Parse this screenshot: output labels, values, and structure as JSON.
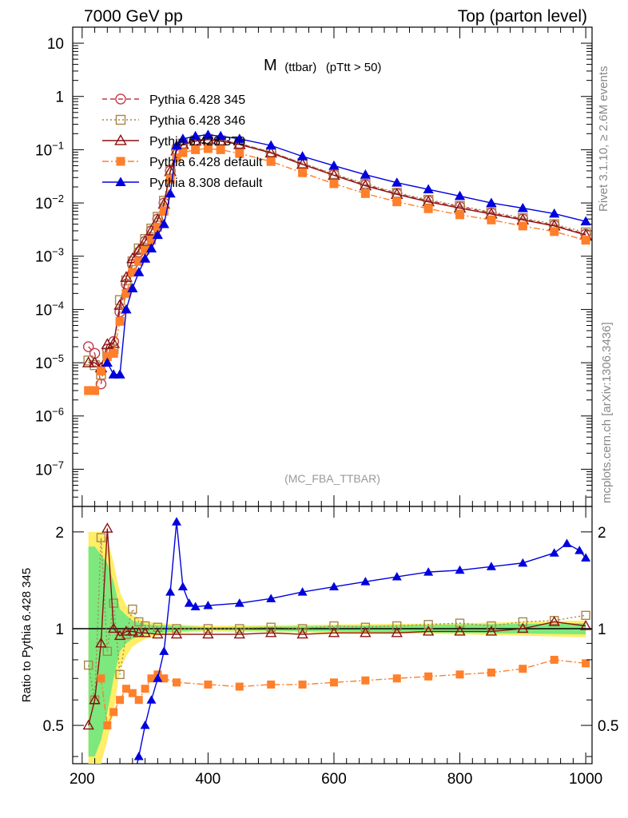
{
  "header": {
    "left": "7000 GeV pp",
    "right": "Top (parton level)"
  },
  "side_labels": {
    "rivet": "Rivet 3.1.10, ≥ 2.6M events",
    "mcplots": "mcplots.cern.ch [arXiv:1306.3436]"
  },
  "colors": {
    "p345": "#c0394b",
    "p346": "#a8864a",
    "p370": "#8b1010",
    "p6def": "#ff7f2a",
    "p8def": "#0000dd",
    "band_yellow": "#ffee66",
    "band_green": "#7de87d"
  },
  "chart_data": [
    {
      "type": "line",
      "title": "M",
      "title_sub": "(ttbar)",
      "title_extra": "(pTtt > 50)",
      "watermark": "(MC_FBA_TTBAR)",
      "xlim": [
        185,
        1010
      ],
      "ylim": [
        2e-08,
        20
      ],
      "yscale": "log",
      "yticks": [
        {
          "v": 1e-07,
          "m": "10",
          "e": "−7"
        },
        {
          "v": 1e-06,
          "m": "10",
          "e": "−6"
        },
        {
          "v": 1e-05,
          "m": "10",
          "e": "−5"
        },
        {
          "v": 0.0001,
          "m": "10",
          "e": "−4"
        },
        {
          "v": 0.001,
          "m": "10",
          "e": "−3"
        },
        {
          "v": 0.01,
          "m": "10",
          "e": "−2"
        },
        {
          "v": 0.1,
          "m": "10",
          "e": "−1"
        },
        {
          "v": 1,
          "m": "1",
          "e": ""
        },
        {
          "v": 10,
          "m": "10",
          "e": ""
        }
      ],
      "legend_placement": "top-left",
      "series": [
        {
          "name": "Pythia 6.428 345",
          "marker": "circle-open",
          "dash": "6,4",
          "x": [
            210,
            220,
            230,
            240,
            250,
            260,
            270,
            280,
            290,
            300,
            310,
            320,
            330,
            340,
            350,
            360,
            380,
            400,
            420,
            450,
            500,
            550,
            600,
            650,
            700,
            750,
            800,
            850,
            900,
            950,
            1000
          ],
          "y": [
            2e-05,
            1.5e-05,
            4e-06,
            1.8e-05,
            2.5e-05,
            9e-05,
            0.0003,
            0.0007,
            0.0012,
            0.0019,
            0.003,
            0.005,
            0.01,
            0.04,
            0.1,
            0.13,
            0.15,
            0.16,
            0.15,
            0.13,
            0.09,
            0.055,
            0.034,
            0.022,
            0.015,
            0.011,
            0.0085,
            0.0065,
            0.005,
            0.0038,
            0.0026
          ]
        },
        {
          "name": "Pythia 6.428 346",
          "marker": "square-open",
          "dash": "2,3",
          "x": [
            210,
            220,
            230,
            240,
            250,
            260,
            270,
            280,
            290,
            300,
            310,
            320,
            330,
            340,
            350,
            360,
            380,
            400,
            420,
            450,
            500,
            550,
            600,
            650,
            700,
            750,
            800,
            850,
            900,
            950,
            1000
          ],
          "y": [
            1.1e-05,
            9e-06,
            6e-06,
            1.5e-05,
            1.8e-05,
            0.00015,
            0.00035,
            0.0008,
            0.0014,
            0.0021,
            0.0033,
            0.0055,
            0.011,
            0.042,
            0.1,
            0.13,
            0.15,
            0.16,
            0.15,
            0.13,
            0.09,
            0.056,
            0.035,
            0.023,
            0.0155,
            0.0115,
            0.0088,
            0.0068,
            0.0052,
            0.004,
            0.0028
          ]
        },
        {
          "name": "Pythia 6.428 370",
          "marker": "triangle-open",
          "dash": "",
          "x": [
            210,
            220,
            230,
            240,
            250,
            260,
            270,
            280,
            290,
            300,
            310,
            320,
            330,
            340,
            350,
            360,
            380,
            400,
            420,
            450,
            500,
            550,
            600,
            650,
            700,
            750,
            800,
            850,
            900,
            950,
            1000
          ],
          "y": [
            1e-05,
            1e-05,
            8e-06,
            2.2e-05,
            2.3e-05,
            0.00012,
            0.0004,
            0.0009,
            0.0013,
            0.0019,
            0.003,
            0.0048,
            0.0095,
            0.039,
            0.095,
            0.125,
            0.145,
            0.155,
            0.145,
            0.125,
            0.087,
            0.053,
            0.033,
            0.021,
            0.0145,
            0.0105,
            0.008,
            0.0062,
            0.0048,
            0.0037,
            0.0025
          ]
        },
        {
          "name": "Pythia 6.428 default",
          "marker": "square-filled",
          "dash": "8,3,2,3",
          "x": [
            210,
            220,
            230,
            240,
            250,
            260,
            270,
            280,
            290,
            300,
            310,
            320,
            330,
            340,
            350,
            360,
            380,
            400,
            420,
            450,
            500,
            550,
            600,
            650,
            700,
            750,
            800,
            850,
            900,
            950,
            1000
          ],
          "y": [
            3e-06,
            3e-06,
            7e-06,
            1.3e-05,
            1.5e-05,
            6e-05,
            0.0002,
            0.0005,
            0.0008,
            0.0013,
            0.002,
            0.0035,
            0.007,
            0.028,
            0.07,
            0.088,
            0.1,
            0.105,
            0.1,
            0.085,
            0.06,
            0.037,
            0.023,
            0.015,
            0.0105,
            0.0078,
            0.006,
            0.0048,
            0.0037,
            0.0029,
            0.002
          ]
        },
        {
          "name": "Pythia 8.308 default",
          "marker": "triangle-filled",
          "dash": "",
          "x": [
            240,
            250,
            260,
            270,
            280,
            290,
            300,
            310,
            320,
            330,
            340,
            350,
            360,
            380,
            400,
            420,
            450,
            500,
            550,
            600,
            650,
            700,
            750,
            800,
            850,
            900,
            950,
            1000
          ],
          "y": [
            1e-05,
            6e-06,
            6e-06,
            0.0001,
            0.00025,
            0.0005,
            0.0009,
            0.0014,
            0.0025,
            0.004,
            0.015,
            0.12,
            0.16,
            0.18,
            0.19,
            0.18,
            0.16,
            0.12,
            0.075,
            0.05,
            0.034,
            0.024,
            0.018,
            0.0135,
            0.01,
            0.008,
            0.0063,
            0.0045
          ]
        }
      ]
    },
    {
      "type": "line",
      "ylabel": "Ratio to Pythia 6.428 345",
      "xlim": [
        185,
        1010
      ],
      "ylim": [
        0.38,
        2.4
      ],
      "yscale": "log",
      "reference_line": 1,
      "xticks": [
        200,
        400,
        600,
        800,
        1000
      ],
      "yticks": [
        0.5,
        1,
        2
      ],
      "band": {
        "x": [
          210,
          220,
          230,
          240,
          250,
          260,
          270,
          280,
          300,
          350,
          400,
          500,
          600,
          700,
          800,
          900,
          1000
        ],
        "yellow_lo": [
          0.35,
          0.35,
          0.38,
          0.45,
          0.55,
          0.75,
          0.82,
          0.88,
          0.93,
          0.97,
          0.98,
          0.975,
          0.97,
          0.965,
          0.96,
          0.95,
          0.94
        ],
        "yellow_hi": [
          2.0,
          2.0,
          2.0,
          1.9,
          1.6,
          1.3,
          1.18,
          1.1,
          1.05,
          1.03,
          1.02,
          1.025,
          1.03,
          1.035,
          1.04,
          1.05,
          1.06
        ],
        "green_lo": [
          0.4,
          0.4,
          0.45,
          0.55,
          0.7,
          0.85,
          0.9,
          0.93,
          0.96,
          0.98,
          0.99,
          0.985,
          0.98,
          0.975,
          0.97,
          0.965,
          0.96
        ],
        "green_hi": [
          1.8,
          1.8,
          1.7,
          1.6,
          1.4,
          1.15,
          1.1,
          1.06,
          1.03,
          1.02,
          1.01,
          1.015,
          1.02,
          1.025,
          1.03,
          1.035,
          1.04
        ]
      },
      "series": [
        {
          "name": "Pythia 6.428 346",
          "x": [
            210,
            220,
            230,
            240,
            250,
            260,
            270,
            280,
            290,
            300,
            320,
            350,
            400,
            450,
            500,
            550,
            600,
            650,
            700,
            750,
            800,
            850,
            900,
            950,
            1000
          ],
          "y": [
            0.77,
            0.6,
            1.92,
            0.85,
            1.2,
            0.72,
            0.96,
            1.15,
            1.05,
            1.02,
            1.01,
            1.0,
            1.0,
            1.0,
            1.01,
            1.0,
            1.02,
            1.01,
            1.02,
            1.03,
            1.04,
            1.02,
            1.05,
            1.06,
            1.1
          ]
        },
        {
          "name": "Pythia 6.428 370",
          "x": [
            210,
            220,
            230,
            240,
            250,
            260,
            270,
            280,
            290,
            300,
            320,
            350,
            400,
            450,
            500,
            550,
            600,
            650,
            700,
            750,
            800,
            850,
            900,
            950,
            1000
          ],
          "y": [
            0.5,
            0.6,
            0.9,
            2.05,
            1.0,
            0.95,
            0.98,
            0.98,
            0.97,
            0.97,
            0.96,
            0.96,
            0.96,
            0.96,
            0.97,
            0.96,
            0.97,
            0.97,
            0.97,
            0.98,
            0.98,
            0.98,
            1.0,
            1.05,
            1.02
          ]
        },
        {
          "name": "Pythia 6.428 default",
          "x": [
            230,
            240,
            250,
            260,
            270,
            280,
            290,
            300,
            310,
            320,
            330,
            350,
            400,
            450,
            500,
            550,
            600,
            650,
            700,
            750,
            800,
            850,
            900,
            950,
            1000
          ],
          "y": [
            0.7,
            0.5,
            0.55,
            0.6,
            0.65,
            0.63,
            0.6,
            0.65,
            0.7,
            0.72,
            0.7,
            0.68,
            0.67,
            0.66,
            0.67,
            0.67,
            0.68,
            0.69,
            0.7,
            0.71,
            0.72,
            0.73,
            0.75,
            0.8,
            0.78
          ]
        },
        {
          "name": "Pythia 8.308 default",
          "x": [
            280,
            290,
            300,
            310,
            320,
            330,
            340,
            350,
            360,
            370,
            380,
            400,
            450,
            500,
            550,
            600,
            650,
            700,
            750,
            800,
            850,
            900,
            950,
            970,
            990,
            1000
          ],
          "y": [
            0.33,
            0.4,
            0.5,
            0.6,
            0.7,
            0.85,
            1.3,
            2.15,
            1.35,
            1.2,
            1.17,
            1.18,
            1.2,
            1.24,
            1.3,
            1.35,
            1.4,
            1.45,
            1.5,
            1.52,
            1.56,
            1.6,
            1.72,
            1.84,
            1.75,
            1.66
          ]
        }
      ]
    }
  ]
}
